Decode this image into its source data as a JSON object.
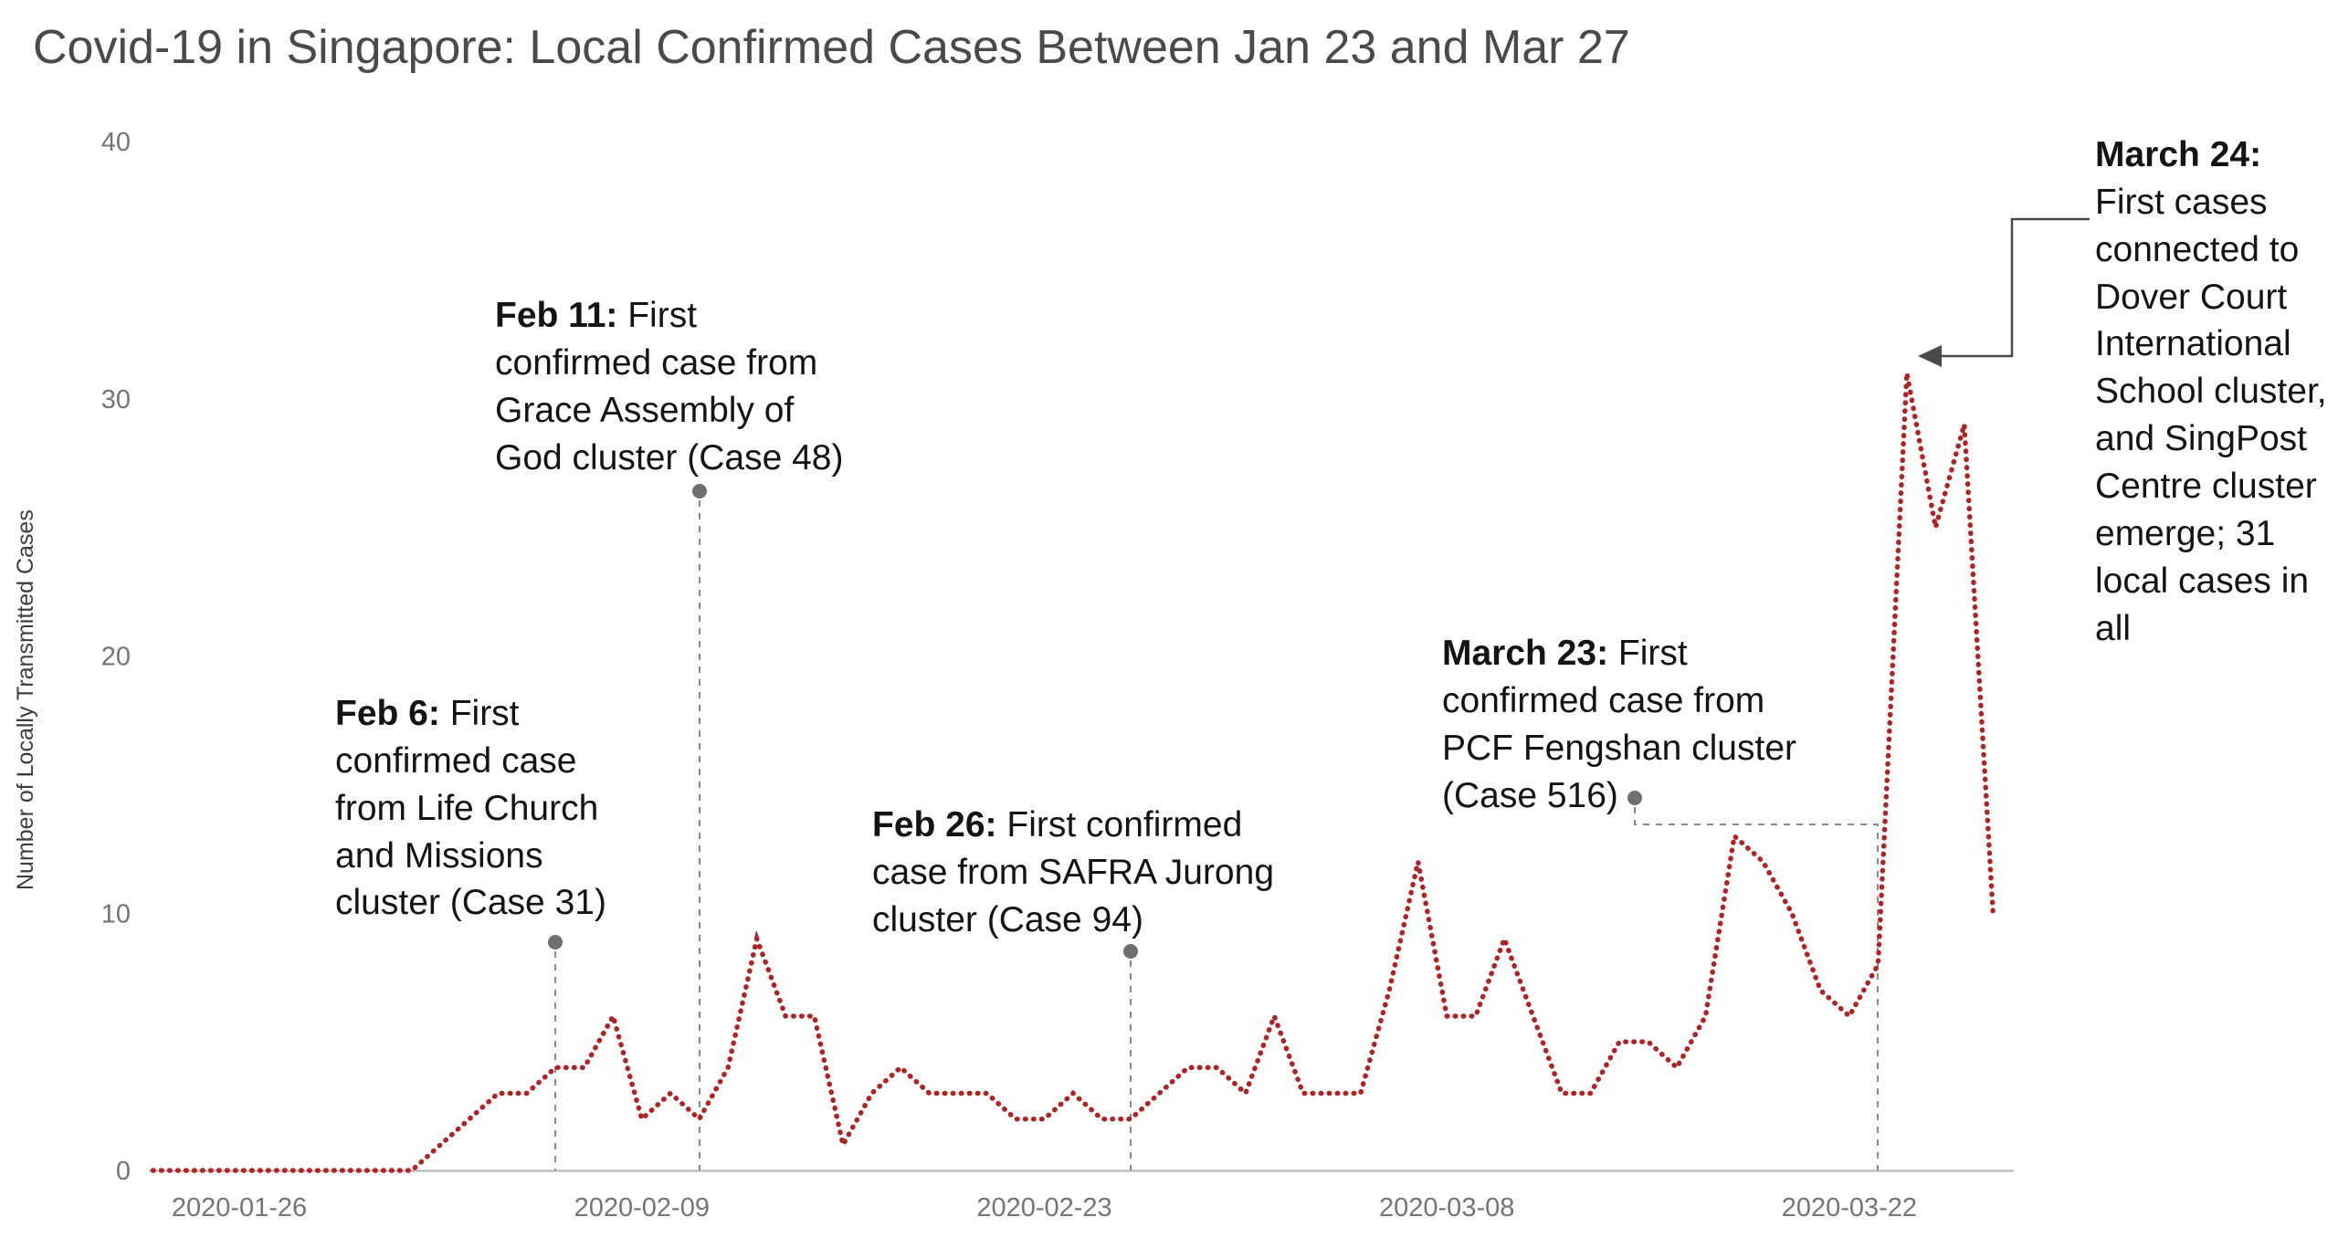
{
  "title": "Covid-19 in Singapore: Local Confirmed Cases Between Jan 23 and Mar 27",
  "chart_data": {
    "type": "line",
    "title": "Covid-19 in Singapore: Local Confirmed Cases Between Jan 23 and Mar 27",
    "xlabel": "",
    "ylabel": "Number of Locally Transmitted Cases",
    "ylim": [
      0,
      40
    ],
    "yticks": [
      0,
      10,
      20,
      30,
      40
    ],
    "xticks": [
      "2020-01-26",
      "2020-02-09",
      "2020-02-23",
      "2020-03-08",
      "2020-03-22"
    ],
    "xtick_days": [
      3,
      17,
      31,
      45,
      59
    ],
    "line_style": "dotted",
    "grid": "off",
    "legend": "none",
    "colors": {
      "line": "#b22222",
      "axis": "#b3b3b3",
      "tick_text": "#757575",
      "annotation_marker": "#6f6f6f",
      "title_text": "#4a4a4a"
    },
    "dates": [
      "2020-01-23",
      "2020-01-24",
      "2020-01-25",
      "2020-01-26",
      "2020-01-27",
      "2020-01-28",
      "2020-01-29",
      "2020-01-30",
      "2020-01-31",
      "2020-02-01",
      "2020-02-02",
      "2020-02-03",
      "2020-02-04",
      "2020-02-05",
      "2020-02-06",
      "2020-02-07",
      "2020-02-08",
      "2020-02-09",
      "2020-02-10",
      "2020-02-11",
      "2020-02-12",
      "2020-02-13",
      "2020-02-14",
      "2020-02-15",
      "2020-02-16",
      "2020-02-17",
      "2020-02-18",
      "2020-02-19",
      "2020-02-20",
      "2020-02-21",
      "2020-02-22",
      "2020-02-23",
      "2020-02-24",
      "2020-02-25",
      "2020-02-26",
      "2020-02-27",
      "2020-02-28",
      "2020-02-29",
      "2020-03-01",
      "2020-03-02",
      "2020-03-03",
      "2020-03-04",
      "2020-03-05",
      "2020-03-06",
      "2020-03-07",
      "2020-03-08",
      "2020-03-09",
      "2020-03-10",
      "2020-03-11",
      "2020-03-12",
      "2020-03-13",
      "2020-03-14",
      "2020-03-15",
      "2020-03-16",
      "2020-03-17",
      "2020-03-18",
      "2020-03-19",
      "2020-03-20",
      "2020-03-21",
      "2020-03-22",
      "2020-03-23",
      "2020-03-24",
      "2020-03-25",
      "2020-03-26",
      "2020-03-27"
    ],
    "values": [
      0,
      0,
      0,
      0,
      0,
      0,
      0,
      0,
      0,
      0,
      1,
      2,
      3,
      3,
      4,
      4,
      6,
      2,
      3,
      2,
      4,
      9,
      6,
      6,
      1,
      3,
      4,
      3,
      3,
      3,
      2,
      2,
      3,
      2,
      2,
      3,
      4,
      4,
      3,
      6,
      3,
      3,
      3,
      7,
      12,
      6,
      6,
      9,
      6,
      3,
      3,
      5,
      5,
      4,
      6,
      13,
      12,
      10,
      7,
      6,
      8,
      31,
      25,
      29,
      10
    ],
    "annotations": [
      {
        "label": "Feb 6:",
        "text": "First confirmed case from Life Church and Missions cluster (Case 31)",
        "date": "2020-02-06"
      },
      {
        "label": "Feb 11:",
        "text": "First confirmed case from Grace Assembly of God cluster (Case 48)",
        "date": "2020-02-11"
      },
      {
        "label": "Feb 26:",
        "text": "First confirmed case from SAFRA Jurong cluster (Case 94)",
        "date": "2020-02-26"
      },
      {
        "label": "March 23:",
        "text": "First confirmed case from PCF Fengshan cluster (Case 516)",
        "date": "2020-03-23"
      },
      {
        "label": "March 24:",
        "text": "First cases connected to Dover Court International School cluster, and SingPost Centre cluster emerge; 31 local cases in all",
        "date": "2020-03-24"
      }
    ]
  }
}
